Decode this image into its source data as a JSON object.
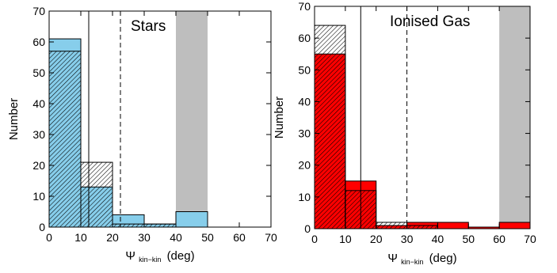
{
  "chart_data": [
    {
      "type": "bar",
      "title": "Stars",
      "xlabel": "Ψ",
      "xlabel_subscript": "kin−kin",
      "xlabel_unit": "(deg)",
      "ylabel": "Number",
      "xlim": [
        0,
        70
      ],
      "ylim": [
        0,
        70
      ],
      "xticks": [
        0,
        10,
        20,
        30,
        40,
        50,
        60,
        70
      ],
      "yticks": [
        0,
        10,
        20,
        30,
        40,
        50,
        60,
        70
      ],
      "bin_width": 10,
      "series": [
        {
          "style": "filled",
          "color": "#87ceeb",
          "bin_starts": [
            0,
            10,
            20,
            30,
            40
          ],
          "values": [
            61,
            13,
            4,
            1,
            5
          ]
        },
        {
          "style": "hatched",
          "color": "#000000",
          "bin_starts": [
            0,
            10,
            20,
            30,
            40
          ],
          "values": [
            57,
            21,
            1,
            1,
            0
          ]
        }
      ],
      "shaded_region": {
        "x": [
          40,
          50
        ],
        "color": "#bebebe"
      },
      "vlines": [
        {
          "x": 12.5,
          "style": "solid"
        },
        {
          "x": 22.5,
          "style": "dashed"
        }
      ]
    },
    {
      "type": "bar",
      "title": "Ionised Gas",
      "xlabel": "Ψ",
      "xlabel_subscript": "kin−kin",
      "xlabel_unit": "(deg)",
      "ylabel": "Number",
      "xlim": [
        0,
        70
      ],
      "ylim": [
        0,
        70
      ],
      "xticks": [
        0,
        10,
        20,
        30,
        40,
        50,
        60,
        70
      ],
      "yticks": [
        0,
        10,
        20,
        30,
        40,
        50,
        60,
        70
      ],
      "bin_width": 10,
      "series": [
        {
          "style": "filled",
          "color": "#ff0000",
          "bin_starts": [
            0,
            10,
            20,
            30,
            40,
            50,
            60
          ],
          "values": [
            55,
            15,
            1,
            2,
            2,
            0.5,
            2
          ]
        },
        {
          "style": "hatched",
          "color": "#000000",
          "bin_starts": [
            0,
            10,
            20,
            30,
            40,
            50,
            60
          ],
          "values": [
            64,
            12,
            2,
            1,
            0,
            0,
            0
          ]
        }
      ],
      "shaded_region": {
        "x": [
          60,
          70
        ],
        "color": "#bebebe"
      },
      "vlines": [
        {
          "x": 15,
          "style": "solid"
        },
        {
          "x": 30,
          "style": "dashed"
        }
      ]
    }
  ]
}
